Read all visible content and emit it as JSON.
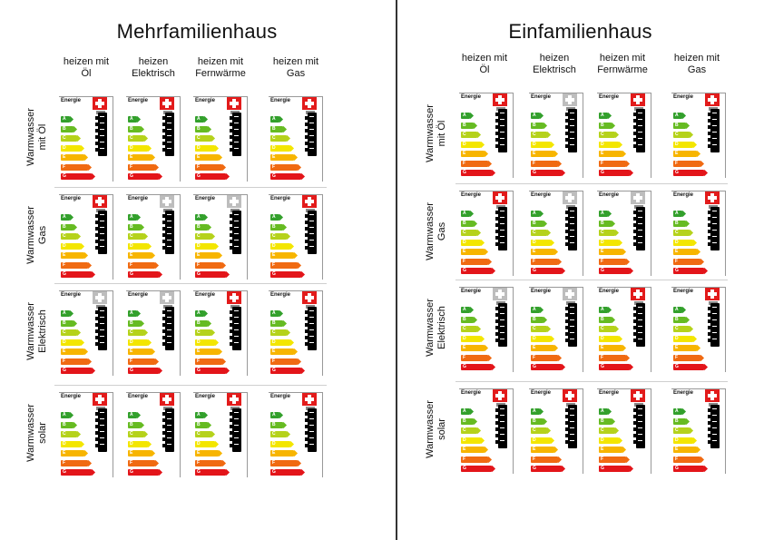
{
  "panels": [
    {
      "title": "Mehrfamilienhaus",
      "columns": [
        "heizen mit\nÖl",
        "heizen\nElektrisch",
        "heizen mit\nFernwärme",
        "heizen mit\nGas"
      ],
      "rows": [
        "Warmwasser\nmit Öl",
        "Warmwasser\nGas",
        "Warmwasser\nElektrisch",
        "Warmwasser\nsolar"
      ]
    },
    {
      "title": "Einfamilienhaus",
      "columns": [
        "heizen mit\nÖl",
        "heizen\nElektrisch",
        "heizen mit\nFernwärme",
        "heizen mit\nGas"
      ],
      "rows": [
        "Warmwasser\nmit Öl",
        "Warmwasser\nGas",
        "Warmwasser\nElektrisch",
        "Warmwasser\nsolar"
      ]
    }
  ],
  "energy_label": {
    "word": "Energie",
    "classes": [
      "A",
      "B",
      "C",
      "D",
      "E",
      "F",
      "G"
    ],
    "class_colors": [
      "#33a02c",
      "#66bb22",
      "#b5d21b",
      "#f3e600",
      "#f7b500",
      "#f06a12",
      "#e3151a"
    ]
  }
}
